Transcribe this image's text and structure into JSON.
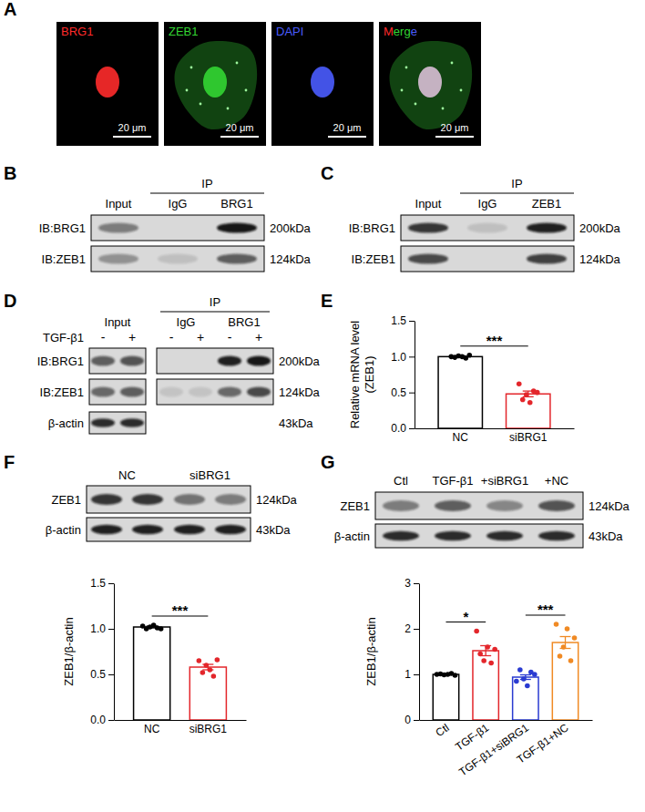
{
  "panel_letters": [
    "A",
    "B",
    "C",
    "D",
    "E",
    "F",
    "G"
  ],
  "panels": {
    "A": {
      "images": [
        {
          "label": "BRG1",
          "color": "#ff2b2b"
        },
        {
          "label": "ZEB1",
          "color": "#33d633"
        },
        {
          "label": "DAPI",
          "color": "#4a5cff"
        },
        {
          "label": "Merge"
        }
      ],
      "scale_bar": "20 μm"
    },
    "B": {
      "group": "IP",
      "lanes": [
        "Input",
        "IgG",
        "BRG1"
      ],
      "rows": [
        {
          "label": "IB:BRG1",
          "size": "200kDa"
        },
        {
          "label": "IB:ZEB1",
          "size": "124kDa"
        }
      ]
    },
    "C": {
      "group": "IP",
      "lanes": [
        "Input",
        "IgG",
        "ZEB1"
      ],
      "rows": [
        {
          "label": "IB:BRG1",
          "size": "200kDa"
        },
        {
          "label": "IB:ZEB1",
          "size": "124kDa"
        }
      ]
    },
    "D": {
      "group": "IP",
      "lanes": [
        "Input",
        "IgG",
        "BRG1"
      ],
      "treatment": "TGF-β1",
      "signs": [
        "-",
        "+",
        "-",
        "+",
        "-",
        "+"
      ],
      "rows": [
        {
          "label": "IB:BRG1",
          "size": "200kDa"
        },
        {
          "label": "IB:ZEB1",
          "size": "124kDa"
        },
        {
          "label": "β-actin",
          "size": "43kDa"
        }
      ]
    },
    "F": {
      "lanes": [
        "NC",
        "siBRG1"
      ],
      "rows": [
        {
          "label": "ZEB1",
          "size": "124kDa"
        },
        {
          "label": "β-actin",
          "size": "43kDa"
        }
      ]
    },
    "G": {
      "lanes": [
        "Ctl",
        "TGF-β1",
        "+siBRG1",
        "+NC"
      ],
      "rows": [
        {
          "label": "ZEB1",
          "size": "124kDa"
        },
        {
          "label": "β-actin",
          "size": "43kDa"
        }
      ]
    }
  },
  "chart_data": [
    {
      "type": "bar",
      "y_label": [
        "Relative mRNA level",
        "(ZEB1)"
      ],
      "categories": [
        "NC",
        "siBRG1"
      ],
      "values": [
        1.0,
        0.48
      ],
      "error": [
        0.01,
        0.04
      ],
      "points": [
        [
          1.0,
          0.99,
          1.01,
          1.0,
          0.98,
          1.02
        ],
        [
          0.62,
          0.4,
          0.47,
          0.36,
          0.52,
          0.5
        ]
      ],
      "colors": [
        "#000000",
        "#e3262b"
      ],
      "ylim": [
        0,
        1.5
      ],
      "yticks": [
        {
          "value": 0,
          "label": "0.0"
        },
        {
          "value": 0.5,
          "label": "0.5"
        },
        {
          "value": 1,
          "label": "1.0"
        },
        {
          "value": 1.5,
          "label": "1.5"
        }
      ],
      "annotations": [
        {
          "text": "***",
          "between": [
            "NC",
            "siBRG1"
          ]
        }
      ]
    },
    {
      "type": "bar",
      "y_label": [
        "ZEB1/β-actin"
      ],
      "categories": [
        "NC",
        "siBRG1"
      ],
      "values": [
        1.02,
        0.58
      ],
      "error": [
        0.01,
        0.03
      ],
      "points": [
        [
          1.03,
          1.0,
          1.02,
          1.04,
          1.01,
          1.0
        ],
        [
          0.65,
          0.52,
          0.6,
          0.55,
          0.48,
          0.66
        ]
      ],
      "colors": [
        "#000000",
        "#e3262b"
      ],
      "ylim": [
        0,
        1.5
      ],
      "yticks": [
        {
          "value": 0,
          "label": "0.0"
        },
        {
          "value": 0.5,
          "label": "0.5"
        },
        {
          "value": 1,
          "label": "1.0"
        },
        {
          "value": 1.5,
          "label": "1.5"
        }
      ],
      "annotations": [
        {
          "text": "***",
          "between": [
            "NC",
            "siBRG1"
          ]
        }
      ]
    },
    {
      "type": "bar",
      "y_label": [
        "ZEB1/β-actin"
      ],
      "categories": [
        "Ctl",
        "TGF-β1",
        "TGF-β1+siBRG1",
        "TGF-β1+NC"
      ],
      "values": [
        1.0,
        1.52,
        0.94,
        1.7
      ],
      "error": [
        0.01,
        0.11,
        0.05,
        0.13
      ],
      "points": [
        [
          1.0,
          1.01,
          0.99,
          1.0,
          1.02,
          0.98
        ],
        [
          1.95,
          1.45,
          1.3,
          1.6,
          1.25,
          1.55
        ],
        [
          0.85,
          1.1,
          0.9,
          0.75,
          1.05,
          1.0
        ],
        [
          2.1,
          1.4,
          1.6,
          2.0,
          1.3,
          1.8
        ]
      ],
      "colors": [
        "#000000",
        "#e3262b",
        "#2a3bd1",
        "#f08a24"
      ],
      "ylim": [
        0,
        3
      ],
      "yticks": [
        0,
        1,
        2,
        3
      ],
      "annotations": [
        {
          "text": "*",
          "between": [
            "Ctl",
            "TGF-β1"
          ]
        },
        {
          "text": "***",
          "between": [
            "TGF-β1+siBRG1",
            "TGF-β1+NC"
          ]
        }
      ]
    }
  ]
}
